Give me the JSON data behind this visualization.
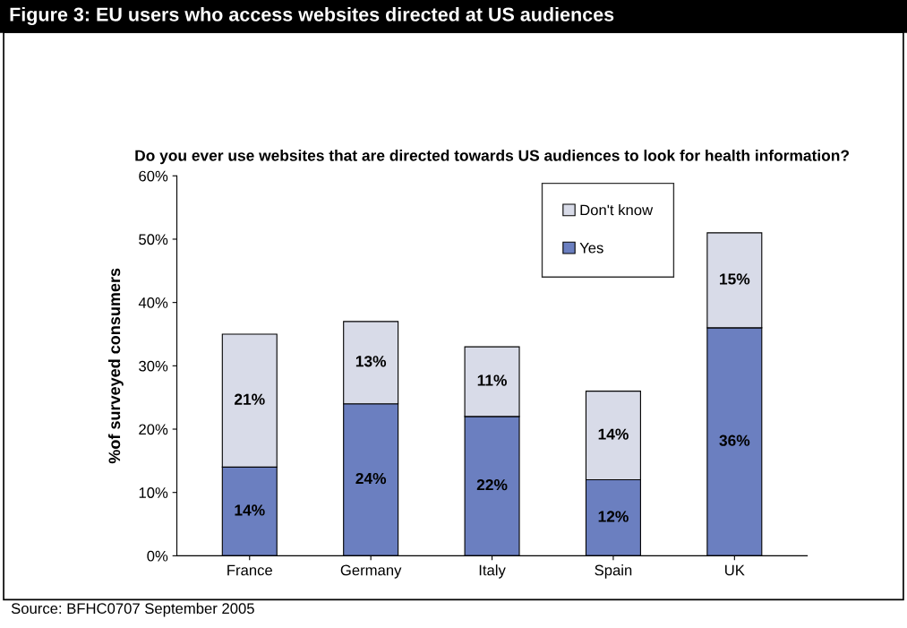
{
  "chart_data": {
    "type": "bar",
    "title": "Figure 3: EU users who access websites directed at US audiences",
    "subtitle": "Do you ever use websites that are directed towards US audiences to look for health information?",
    "ylabel": "%of surveyed consumers",
    "categories": [
      "France",
      "Germany",
      "Italy",
      "Spain",
      "UK"
    ],
    "series": [
      {
        "name": "Yes",
        "color": "#6b7fc0",
        "values": [
          14,
          24,
          22,
          12,
          36
        ],
        "value_labels": [
          "14%",
          "24%",
          "22%",
          "12%",
          "36%"
        ]
      },
      {
        "name": "Don't know",
        "color": "#d8dbe8",
        "values": [
          21,
          13,
          11,
          14,
          15
        ],
        "value_labels": [
          "21%",
          "13%",
          "11%",
          "14%",
          "15%"
        ]
      }
    ],
    "stacked": true,
    "ylim": [
      0,
      60
    ],
    "yticks": [
      {
        "value": 0,
        "label": "0%"
      },
      {
        "value": 10,
        "label": "10%"
      },
      {
        "value": 20,
        "label": "20%"
      },
      {
        "value": 30,
        "label": "30%"
      },
      {
        "value": 40,
        "label": "40%"
      },
      {
        "value": 50,
        "label": "50%"
      },
      {
        "value": 60,
        "label": "60%"
      }
    ],
    "grid": false,
    "legend": "top right",
    "annotations": [
      "Source: BFHC0707 September 2005"
    ]
  }
}
